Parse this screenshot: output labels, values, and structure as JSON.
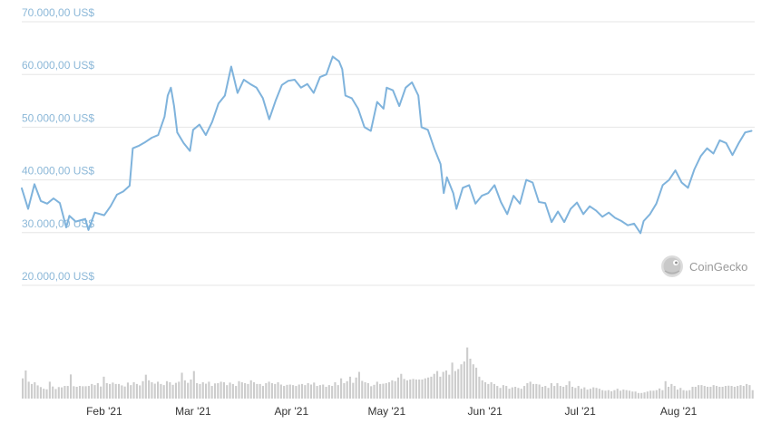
{
  "colors": {
    "line": "#7fb3dc",
    "volume": "#cccccc",
    "grid": "#e6e6e6",
    "y_label": "#8cb8d8",
    "x_label": "#333333",
    "watermark": "#9a9a9a"
  },
  "watermark": {
    "text": "CoinGecko",
    "icon": "coingecko-gecko-logo"
  },
  "chart_data": {
    "type": "line",
    "title": "",
    "xlabel": "",
    "ylabel": "",
    "grid": true,
    "y_tick_values": [
      20000,
      30000,
      40000,
      50000,
      60000,
      70000
    ],
    "y_tick_labels": [
      "20.000,00 US$",
      "30.000,00 US$",
      "40.000,00 US$",
      "50.000,00 US$",
      "60.000,00 US$",
      "70.000,00 US$"
    ],
    "ylim": [
      20000,
      70000
    ],
    "x_tick_labels": [
      "Feb '21",
      "Mar '21",
      "Apr '21",
      "May '21",
      "Jun '21",
      "Jul '21",
      "Aug '21"
    ],
    "x_tick_dates": [
      "2021-02-01",
      "2021-03-01",
      "2021-04-01",
      "2021-05-01",
      "2021-06-01",
      "2021-07-01",
      "2021-08-01"
    ],
    "xlim": [
      "2021-01-06",
      "2021-08-25"
    ],
    "price_series": [
      [
        "2021-01-06",
        38400
      ],
      [
        "2021-01-08",
        34500
      ],
      [
        "2021-01-10",
        39200
      ],
      [
        "2021-01-12",
        36000
      ],
      [
        "2021-01-14",
        35500
      ],
      [
        "2021-01-16",
        36500
      ],
      [
        "2021-01-18",
        35600
      ],
      [
        "2021-01-20",
        31000
      ],
      [
        "2021-01-21",
        33200
      ],
      [
        "2021-01-23",
        32100
      ],
      [
        "2021-01-26",
        32600
      ],
      [
        "2021-01-27",
        30500
      ],
      [
        "2021-01-29",
        33800
      ],
      [
        "2021-02-01",
        33300
      ],
      [
        "2021-02-03",
        35000
      ],
      [
        "2021-02-05",
        37200
      ],
      [
        "2021-02-07",
        37800
      ],
      [
        "2021-02-09",
        38900
      ],
      [
        "2021-02-10",
        46000
      ],
      [
        "2021-02-12",
        46500
      ],
      [
        "2021-02-14",
        47200
      ],
      [
        "2021-02-16",
        48000
      ],
      [
        "2021-02-18",
        48500
      ],
      [
        "2021-02-20",
        52000
      ],
      [
        "2021-02-21",
        56000
      ],
      [
        "2021-02-22",
        57500
      ],
      [
        "2021-02-23",
        54000
      ],
      [
        "2021-02-24",
        49000
      ],
      [
        "2021-02-26",
        47000
      ],
      [
        "2021-02-28",
        45500
      ],
      [
        "2021-03-01",
        49500
      ],
      [
        "2021-03-03",
        50500
      ],
      [
        "2021-03-05",
        48500
      ],
      [
        "2021-03-07",
        51000
      ],
      [
        "2021-03-09",
        54500
      ],
      [
        "2021-03-11",
        56000
      ],
      [
        "2021-03-13",
        61500
      ],
      [
        "2021-03-15",
        56500
      ],
      [
        "2021-03-17",
        59000
      ],
      [
        "2021-03-19",
        58200
      ],
      [
        "2021-03-21",
        57500
      ],
      [
        "2021-03-23",
        55500
      ],
      [
        "2021-03-25",
        51500
      ],
      [
        "2021-03-27",
        55000
      ],
      [
        "2021-03-29",
        58000
      ],
      [
        "2021-03-31",
        58800
      ],
      [
        "2021-04-02",
        59000
      ],
      [
        "2021-04-04",
        57500
      ],
      [
        "2021-04-06",
        58200
      ],
      [
        "2021-04-08",
        56500
      ],
      [
        "2021-04-10",
        59500
      ],
      [
        "2021-04-12",
        60000
      ],
      [
        "2021-04-14",
        63400
      ],
      [
        "2021-04-16",
        62500
      ],
      [
        "2021-04-17",
        61000
      ],
      [
        "2021-04-18",
        56000
      ],
      [
        "2021-04-20",
        55500
      ],
      [
        "2021-04-22",
        53500
      ],
      [
        "2021-04-24",
        50000
      ],
      [
        "2021-04-26",
        49300
      ],
      [
        "2021-04-28",
        54800
      ],
      [
        "2021-04-30",
        53500
      ],
      [
        "2021-05-01",
        57500
      ],
      [
        "2021-05-03",
        57000
      ],
      [
        "2021-05-05",
        54000
      ],
      [
        "2021-05-07",
        57500
      ],
      [
        "2021-05-09",
        58500
      ],
      [
        "2021-05-11",
        56000
      ],
      [
        "2021-05-12",
        50000
      ],
      [
        "2021-05-14",
        49500
      ],
      [
        "2021-05-16",
        46000
      ],
      [
        "2021-05-18",
        43000
      ],
      [
        "2021-05-19",
        37500
      ],
      [
        "2021-05-20",
        40500
      ],
      [
        "2021-05-22",
        37500
      ],
      [
        "2021-05-23",
        34500
      ],
      [
        "2021-05-25",
        38500
      ],
      [
        "2021-05-27",
        39000
      ],
      [
        "2021-05-29",
        35500
      ],
      [
        "2021-05-31",
        37000
      ],
      [
        "2021-06-02",
        37500
      ],
      [
        "2021-06-04",
        39000
      ],
      [
        "2021-06-06",
        35800
      ],
      [
        "2021-06-08",
        33500
      ],
      [
        "2021-06-10",
        37000
      ],
      [
        "2021-06-12",
        35500
      ],
      [
        "2021-06-14",
        40000
      ],
      [
        "2021-06-16",
        39500
      ],
      [
        "2021-06-18",
        35800
      ],
      [
        "2021-06-20",
        35600
      ],
      [
        "2021-06-22",
        32000
      ],
      [
        "2021-06-24",
        34000
      ],
      [
        "2021-06-26",
        32000
      ],
      [
        "2021-06-28",
        34500
      ],
      [
        "2021-06-30",
        35700
      ],
      [
        "2021-07-02",
        33500
      ],
      [
        "2021-07-04",
        35000
      ],
      [
        "2021-07-06",
        34200
      ],
      [
        "2021-07-08",
        33000
      ],
      [
        "2021-07-10",
        33800
      ],
      [
        "2021-07-12",
        32800
      ],
      [
        "2021-07-14",
        32200
      ],
      [
        "2021-07-16",
        31400
      ],
      [
        "2021-07-18",
        31700
      ],
      [
        "2021-07-20",
        29900
      ],
      [
        "2021-07-21",
        32200
      ],
      [
        "2021-07-23",
        33500
      ],
      [
        "2021-07-25",
        35500
      ],
      [
        "2021-07-27",
        39000
      ],
      [
        "2021-07-29",
        40000
      ],
      [
        "2021-07-31",
        41800
      ],
      [
        "2021-08-02",
        39500
      ],
      [
        "2021-08-04",
        38500
      ],
      [
        "2021-08-06",
        42000
      ],
      [
        "2021-08-08",
        44500
      ],
      [
        "2021-08-10",
        46000
      ],
      [
        "2021-08-12",
        45000
      ],
      [
        "2021-08-14",
        47500
      ],
      [
        "2021-08-16",
        47000
      ],
      [
        "2021-08-18",
        44700
      ],
      [
        "2021-08-20",
        47000
      ],
      [
        "2021-08-22",
        49000
      ],
      [
        "2021-08-24",
        49300
      ]
    ],
    "volume_series": {
      "name": "",
      "unit": "relative",
      "values": [
        0.72,
        1.0,
        0.6,
        0.52,
        0.58,
        0.47,
        0.41,
        0.35,
        0.33,
        0.6,
        0.43,
        0.34,
        0.41,
        0.4,
        0.45,
        0.45,
        0.86,
        0.44,
        0.42,
        0.45,
        0.44,
        0.44,
        0.45,
        0.52,
        0.48,
        0.55,
        0.43,
        0.78,
        0.55,
        0.52,
        0.57,
        0.52,
        0.52,
        0.47,
        0.43,
        0.57,
        0.48,
        0.58,
        0.52,
        0.47,
        0.62,
        0.85,
        0.65,
        0.58,
        0.53,
        0.6,
        0.52,
        0.48,
        0.62,
        0.58,
        0.49,
        0.56,
        0.6,
        0.92,
        0.65,
        0.56,
        0.68,
        0.98,
        0.55,
        0.52,
        0.58,
        0.53,
        0.6,
        0.45,
        0.54,
        0.55,
        0.6,
        0.58,
        0.48,
        0.57,
        0.52,
        0.45,
        0.62,
        0.58,
        0.55,
        0.52,
        0.65,
        0.58,
        0.52,
        0.52,
        0.45,
        0.55,
        0.6,
        0.55,
        0.52,
        0.58,
        0.5,
        0.45,
        0.49,
        0.5,
        0.48,
        0.45,
        0.5,
        0.52,
        0.48,
        0.55,
        0.5,
        0.57,
        0.45,
        0.48,
        0.5,
        0.42,
        0.48,
        0.45,
        0.58,
        0.48,
        0.72,
        0.55,
        0.62,
        0.78,
        0.56,
        0.75,
        0.95,
        0.63,
        0.58,
        0.55,
        0.44,
        0.49,
        0.6,
        0.52,
        0.53,
        0.55,
        0.58,
        0.65,
        0.62,
        0.75,
        0.88,
        0.7,
        0.65,
        0.68,
        0.7,
        0.68,
        0.68,
        0.68,
        0.72,
        0.75,
        0.78,
        0.88,
        0.98,
        0.78,
        0.95,
        1.0,
        0.85,
        1.28,
        0.98,
        1.05,
        1.22,
        1.32,
        1.82,
        1.42,
        1.22,
        1.1,
        0.78,
        0.65,
        0.58,
        0.52,
        0.58,
        0.52,
        0.45,
        0.38,
        0.48,
        0.45,
        0.35,
        0.4,
        0.42,
        0.38,
        0.35,
        0.45,
        0.55,
        0.6,
        0.52,
        0.52,
        0.5,
        0.42,
        0.45,
        0.38,
        0.55,
        0.45,
        0.55,
        0.45,
        0.42,
        0.48,
        0.62,
        0.42,
        0.38,
        0.45,
        0.35,
        0.4,
        0.32,
        0.35,
        0.4,
        0.38,
        0.35,
        0.3,
        0.28,
        0.3,
        0.26,
        0.3,
        0.35,
        0.28,
        0.32,
        0.3,
        0.28,
        0.25,
        0.25,
        0.2,
        0.2,
        0.22,
        0.25,
        0.28,
        0.28,
        0.3,
        0.36,
        0.3,
        0.62,
        0.42,
        0.52,
        0.45,
        0.32,
        0.38,
        0.3,
        0.28,
        0.3,
        0.42,
        0.42,
        0.48,
        0.48,
        0.45,
        0.42,
        0.42,
        0.48,
        0.45,
        0.42,
        0.42,
        0.45,
        0.46,
        0.45,
        0.42,
        0.45,
        0.48,
        0.45,
        0.52,
        0.48,
        0.3
      ]
    }
  }
}
